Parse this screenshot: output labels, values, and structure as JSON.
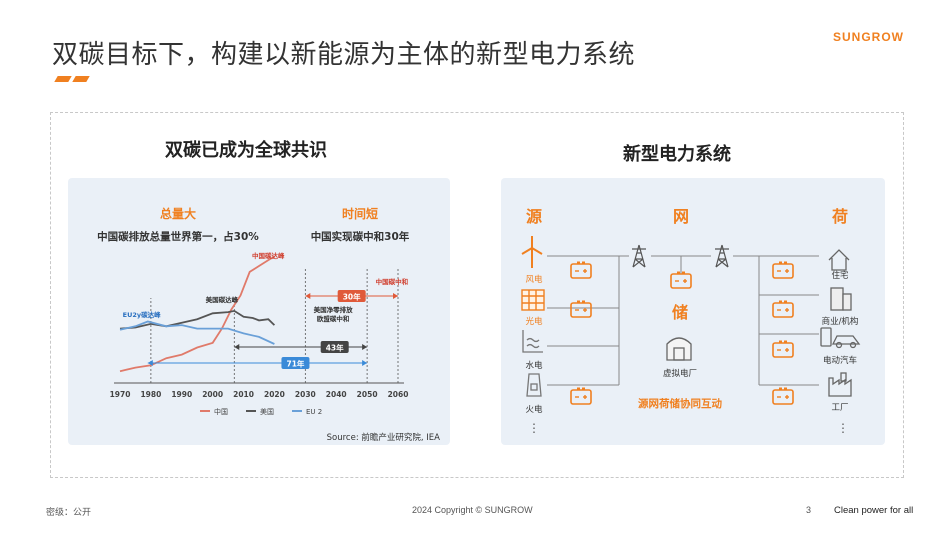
{
  "slide": {
    "title": "双碳目标下，构建以新能源为主体的新型电力系统",
    "logo": "SUNGROW",
    "accent_color": "#f08020"
  },
  "left_panel": {
    "title": "双碳已成为全球共识",
    "source": "Source: 前瞻产业研究院, IEA",
    "heading_left": "总量大",
    "sub_left": "中国碳排放总量世界第一，占30%",
    "heading_right": "时间短",
    "sub_right": "中国实现碳中和30年",
    "chart_data": {
      "type": "line",
      "x_ticks": [
        "1970",
        "1980",
        "1990",
        "2000",
        "2010",
        "2020",
        "2030",
        "2040",
        "2050",
        "2060"
      ],
      "legend": [
        "中国",
        "美国",
        "EU 2"
      ],
      "series": [
        {
          "name": "中国",
          "color": "#e07a6a",
          "x": [
            1970,
            1975,
            1980,
            1985,
            1990,
            1995,
            2000,
            2003,
            2006,
            2009,
            2012,
            2015,
            2018,
            2020
          ],
          "y": [
            1.0,
            1.3,
            1.5,
            2.1,
            2.4,
            3.0,
            3.4,
            4.6,
            6.2,
            7.4,
            9.4,
            9.9,
            10.4,
            10.7
          ]
        },
        {
          "name": "美国",
          "color": "#555555",
          "x": [
            1970,
            1975,
            1980,
            1985,
            1990,
            1995,
            2000,
            2005,
            2007,
            2010,
            2013,
            2015,
            2018,
            2020
          ],
          "y": [
            4.6,
            4.7,
            5.0,
            4.8,
            5.1,
            5.4,
            5.9,
            6.0,
            6.1,
            5.6,
            5.5,
            5.3,
            5.4,
            4.9
          ]
        },
        {
          "name": "EU 2",
          "color": "#6aa0d8",
          "x": [
            1970,
            1975,
            1979,
            1985,
            1990,
            1995,
            2000,
            2005,
            2010,
            2015,
            2020
          ],
          "y": [
            4.5,
            4.8,
            5.2,
            4.8,
            4.9,
            4.6,
            4.6,
            4.6,
            4.2,
            3.9,
            3.3
          ]
        }
      ],
      "annotations": {
        "china_peak": "中国碳达峰",
        "us_peak": "美国碳达峰",
        "eu_peak": "EU2y碳达峰",
        "china_neutral": "中国碳中和",
        "us_eu_neutral_line1": "美国净零排放",
        "us_eu_neutral_line2": "欧盟碳中和",
        "span_30": "30年",
        "span_43": "43年",
        "span_71": "71年"
      }
    }
  },
  "right_panel": {
    "title": "新型电力系统",
    "col_source": "源",
    "col_grid": "网",
    "col_load": "荷",
    "storage": "储",
    "virtual_plant": "虚拟电厂",
    "interaction": "源网荷储协同互动",
    "sources": [
      "风电",
      "光电",
      "水电",
      "火电"
    ],
    "loads": [
      "住宅",
      "商业/机构",
      "电动汽车",
      "工厂"
    ]
  },
  "footer": {
    "classification": "密级：公开",
    "copyright": "2024 Copyright © SUNGROW",
    "page": "3",
    "slogan": "Clean power for all"
  }
}
